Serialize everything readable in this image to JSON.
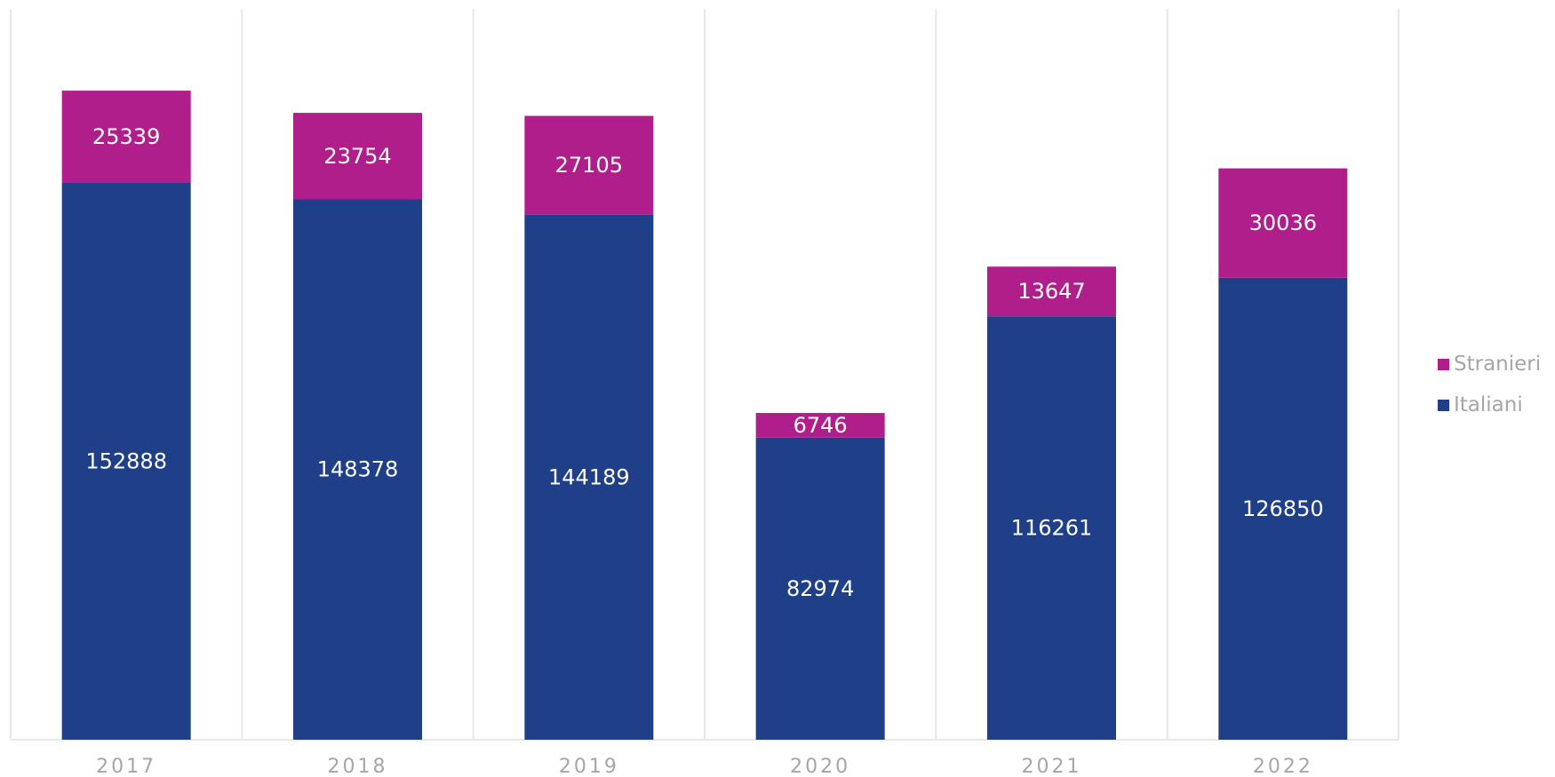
{
  "chart_data": {
    "type": "bar",
    "stacked": true,
    "categories": [
      "2017",
      "2018",
      "2019",
      "2020",
      "2021",
      "2022"
    ],
    "series": [
      {
        "name": "Italiani",
        "color": "#1f4088",
        "values": [
          152888,
          148378,
          144189,
          82974,
          116261,
          126850
        ]
      },
      {
        "name": "Stranieri",
        "color": "#b01e8c",
        "values": [
          25339,
          23754,
          27105,
          6746,
          13647,
          30036
        ]
      }
    ],
    "ylim": [
      0,
      200000
    ],
    "grid": "vertical",
    "legend_position": "right",
    "colors": {
      "gridline": "#e8e8e8",
      "axis_text": "#a6a6a6",
      "data_label": "#ffffff"
    }
  },
  "legend": [
    {
      "label": "Stranieri",
      "color": "#b01e8c"
    },
    {
      "label": "Italiani",
      "color": "#1f4088"
    }
  ]
}
